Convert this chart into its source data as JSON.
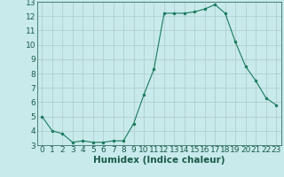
{
  "xlabel": "Humidex (Indice chaleur)",
  "x": [
    0,
    1,
    2,
    3,
    4,
    5,
    6,
    7,
    8,
    9,
    10,
    11,
    12,
    13,
    14,
    15,
    16,
    17,
    18,
    19,
    20,
    21,
    22,
    23
  ],
  "y": [
    5.0,
    4.0,
    3.8,
    3.2,
    3.3,
    3.2,
    3.2,
    3.3,
    3.3,
    4.5,
    6.5,
    8.3,
    12.2,
    12.2,
    12.2,
    12.3,
    12.5,
    12.8,
    12.2,
    10.2,
    8.5,
    7.5,
    6.3,
    5.8
  ],
  "line_color": "#1a7a5e",
  "marker": "o",
  "marker_size": 2.0,
  "bg_color": "#c8eaea",
  "grid_color": "#b0c8c8",
  "ylim": [
    3,
    13
  ],
  "xlim": [
    -0.5,
    23.5
  ],
  "yticks": [
    3,
    4,
    5,
    6,
    7,
    8,
    9,
    10,
    11,
    12,
    13
  ],
  "xticks": [
    0,
    1,
    2,
    3,
    4,
    5,
    6,
    7,
    8,
    9,
    10,
    11,
    12,
    13,
    14,
    15,
    16,
    17,
    18,
    19,
    20,
    21,
    22,
    23
  ],
  "tick_label_fontsize": 6.5,
  "xlabel_fontsize": 7.5,
  "tick_color": "#1a5a4a",
  "label_color": "#1a5a4a"
}
